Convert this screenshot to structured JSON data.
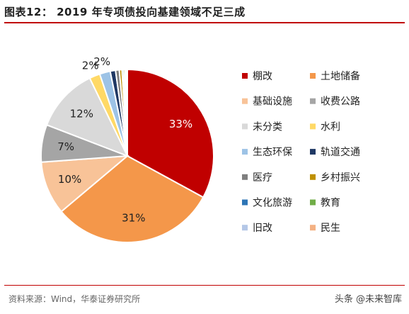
{
  "header": {
    "title": "图表12：  2019 年专项债投向基建领域不足三成"
  },
  "footer": {
    "source": "资料来源：Wind，华泰证券研究所",
    "watermark": "头条 @未来智库"
  },
  "chart_data": {
    "type": "pie",
    "title": "",
    "unit": "%",
    "start_angle_deg": 0,
    "direction": "clockwise",
    "legend_position": "right",
    "slices": [
      {
        "label": "棚改",
        "value": 33,
        "data_label": "33%",
        "color": "#c00000",
        "label_color": "#ffffff"
      },
      {
        "label": "土地储备",
        "value": 31,
        "data_label": "31%",
        "color": "#f4974a",
        "label_color": "#222222"
      },
      {
        "label": "基础设施",
        "value": 10,
        "data_label": "10%",
        "color": "#f8c398",
        "label_color": "#222222"
      },
      {
        "label": "收费公路",
        "value": 7,
        "data_label": "7%",
        "color": "#a5a5a5",
        "label_color": "#222222"
      },
      {
        "label": "未分类",
        "value": 12,
        "data_label": "12%",
        "color": "#d9d9d9",
        "label_color": "#222222"
      },
      {
        "label": "水利",
        "value": 2,
        "data_label": "2%",
        "color": "#ffd966",
        "label_color": "#222222"
      },
      {
        "label": "生态环保",
        "value": 2,
        "data_label": "2%",
        "color": "#9dc3e6",
        "label_color": "#222222"
      },
      {
        "label": "轨道交通",
        "value": 1,
        "data_label": "",
        "color": "#1f3864",
        "label_color": "#222222"
      },
      {
        "label": "医疗",
        "value": 0.7,
        "data_label": "",
        "color": "#7f7f7f",
        "label_color": "#222222"
      },
      {
        "label": "乡村振兴",
        "value": 0.5,
        "data_label": "",
        "color": "#bf9000",
        "label_color": "#222222"
      },
      {
        "label": "文化旅游",
        "value": 0.3,
        "data_label": "",
        "color": "#2e75b6",
        "label_color": "#222222"
      },
      {
        "label": "教育",
        "value": 0.3,
        "data_label": "",
        "color": "#70ad47",
        "label_color": "#222222"
      },
      {
        "label": "旧改",
        "value": 0.2,
        "data_label": "",
        "color": "#b4c7e7",
        "label_color": "#222222"
      },
      {
        "label": "民生",
        "value": 0.2,
        "data_label": "",
        "color": "#f4b183",
        "label_color": "#222222"
      }
    ]
  }
}
